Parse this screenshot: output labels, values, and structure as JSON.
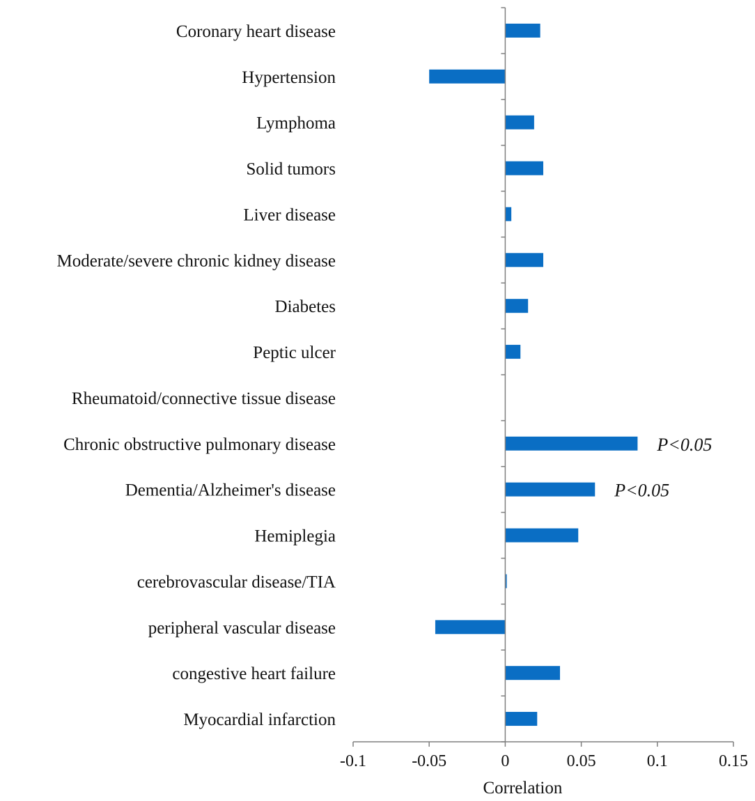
{
  "chart_data": {
    "type": "bar",
    "orientation": "horizontal",
    "title": "",
    "xlabel": "Correlation",
    "ylabel": "",
    "xlim": [
      -0.1,
      0.15
    ],
    "xticks": [
      -0.1,
      -0.05,
      0,
      0.05,
      0.1,
      0.15
    ],
    "xtick_labels": [
      "-0.1",
      "-0.05",
      "0",
      "0.05",
      "0.1",
      "0.15"
    ],
    "grid": false,
    "bar_color": "#0A6EC4",
    "categories": [
      "Coronary heart disease",
      "Hypertension",
      "Lymphoma",
      "Solid tumors",
      "Liver disease",
      "Moderate/severe chronic kidney disease",
      "Diabetes",
      "Peptic ulcer",
      "Rheumatoid/connective tissue disease",
      "Chronic obstructive pulmonary disease",
      "Dementia/Alzheimer's disease",
      "Hemiplegia",
      "cerebrovascular disease/TIA",
      "peripheral vascular disease",
      "congestive heart failure",
      "Myocardial infarction"
    ],
    "values": [
      0.023,
      -0.05,
      0.019,
      0.025,
      0.004,
      0.025,
      0.015,
      0.01,
      0.0,
      0.087,
      0.059,
      0.048,
      0.001,
      -0.046,
      0.036,
      0.021
    ],
    "annotations": [
      {
        "category": "Chronic obstructive pulmonary disease",
        "text": "P<0.05"
      },
      {
        "category": "Dementia/Alzheimer's disease",
        "text": "P<0.05"
      }
    ]
  }
}
